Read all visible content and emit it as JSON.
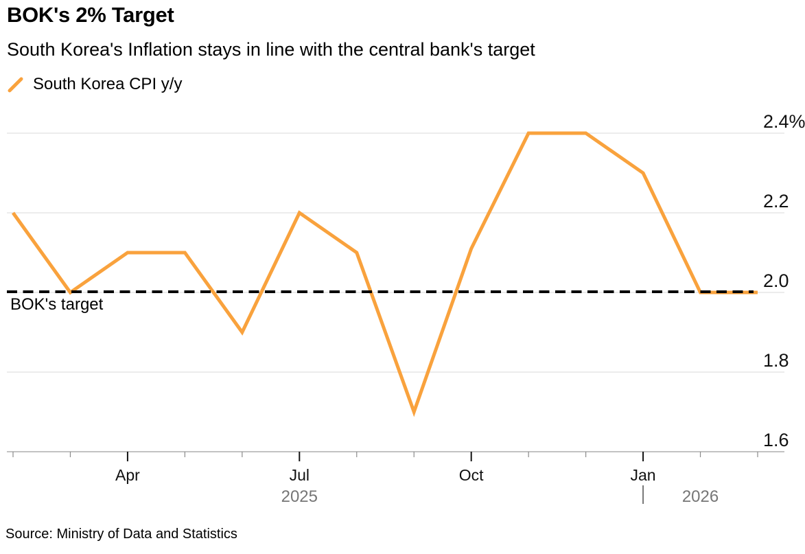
{
  "header": {
    "title": "BOK's 2% Target",
    "subtitle": "South Korea's Inflation stays in line with the central bank's target"
  },
  "legend": {
    "label": "South Korea CPI y/y",
    "marker": "orange-slash-icon"
  },
  "footer": {
    "source": "Source: Ministry of Data and Statistics"
  },
  "colors": {
    "series": "#F9A23D",
    "grid": "#D8D8D8",
    "axis_line": "#ADADAD",
    "tick_minor": "#8A8A8A",
    "tick_major": "#111111",
    "year_text": "#767676",
    "target_line": "#000000"
  },
  "chart_data": {
    "type": "line",
    "title": "BOK's 2% Target",
    "subtitle": "South Korea's Inflation stays in line with the central bank's target",
    "x": [
      "Feb 2025",
      "Mar 2025",
      "Apr 2025",
      "May 2025",
      "Jun 2025",
      "Jul 2025",
      "Aug 2025",
      "Sep 2025",
      "Oct 2025",
      "Nov 2025",
      "Dec 2025",
      "Jan 2026",
      "Feb 2026",
      "Mar 2026"
    ],
    "series": [
      {
        "name": "South Korea CPI y/y",
        "color": "#F9A23D",
        "values": [
          2.2,
          2.0,
          2.1,
          2.1,
          1.9,
          2.2,
          2.1,
          1.7,
          2.11,
          2.4,
          2.4,
          2.3,
          2.0,
          2.0
        ]
      }
    ],
    "ylim": [
      1.6,
      2.4
    ],
    "ylabel": "",
    "xlabel": "",
    "yticks": [
      {
        "value": 2.4,
        "label": "2.4%"
      },
      {
        "value": 2.2,
        "label": "2.2"
      },
      {
        "value": 2.0,
        "label": "2.0"
      },
      {
        "value": 1.8,
        "label": "1.8"
      },
      {
        "value": 1.6,
        "label": "1.6"
      }
    ],
    "xticks_major": [
      {
        "index": 2,
        "label": "Apr"
      },
      {
        "index": 5,
        "label": "Jul"
      },
      {
        "index": 8,
        "label": "Oct"
      },
      {
        "index": 11,
        "label": "Jan"
      }
    ],
    "year_labels": [
      {
        "index": 5,
        "label": "2025"
      },
      {
        "index": 12,
        "label": "2026"
      }
    ],
    "year_divider_index": 11,
    "target_line": {
      "value": 2.0,
      "label": "BOK's target"
    },
    "grid": true,
    "legend_position": "top-left"
  }
}
